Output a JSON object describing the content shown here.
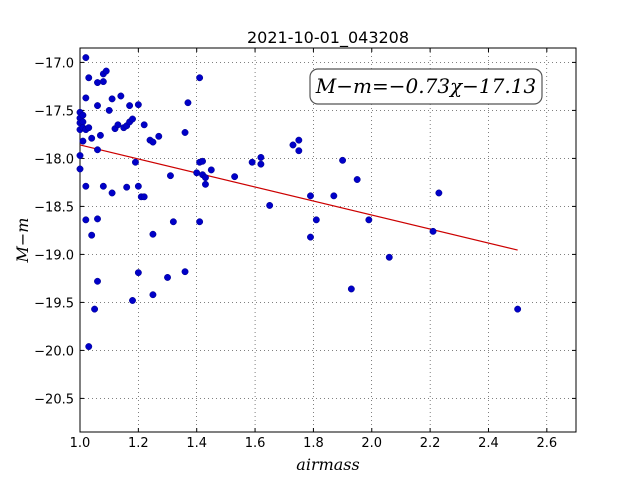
{
  "chart_data": {
    "type": "scatter",
    "title": "2021-10-01_043208",
    "xlabel": "airmass",
    "ylabel": "M−m",
    "xlim": [
      1.0,
      2.7
    ],
    "ylim": [
      -20.85,
      -16.85
    ],
    "y_inverted": true,
    "grid": true,
    "x_ticks": [
      "1.0",
      "1.2",
      "1.4",
      "1.6",
      "1.8",
      "2.0",
      "2.2",
      "2.4",
      "2.6"
    ],
    "x_tick_values": [
      1.0,
      1.2,
      1.4,
      1.6,
      1.8,
      2.0,
      2.2,
      2.4,
      2.6
    ],
    "y_ticks": [
      "−17.0",
      "−17.5",
      "−18.0",
      "−18.5",
      "−19.0",
      "−19.5",
      "−20.0",
      "−20.5"
    ],
    "y_tick_values": [
      -17.0,
      -17.5,
      -18.0,
      -18.5,
      -19.0,
      -19.5,
      -20.0,
      -20.5
    ],
    "annotation": "M−m=−0.73χ−17.13",
    "fit_line": {
      "slope": -0.73,
      "intercept": -17.13,
      "x_range": [
        1.0,
        2.5
      ],
      "color": "#cc0000"
    },
    "point_color": "#0000c8",
    "points": [
      [
        1.0,
        -17.52
      ],
      [
        1.0,
        -17.58
      ],
      [
        1.0,
        -17.63
      ],
      [
        1.0,
        -17.7
      ],
      [
        1.0,
        -17.97
      ],
      [
        1.0,
        -18.11
      ],
      [
        1.01,
        -17.62
      ],
      [
        1.01,
        -17.68
      ],
      [
        1.01,
        -17.82
      ],
      [
        1.01,
        -17.55
      ],
      [
        1.02,
        -17.7
      ],
      [
        1.02,
        -16.95
      ],
      [
        1.02,
        -17.37
      ],
      [
        1.02,
        -18.29
      ],
      [
        1.02,
        -18.64
      ],
      [
        1.03,
        -17.16
      ],
      [
        1.03,
        -17.68
      ],
      [
        1.03,
        -19.96
      ],
      [
        1.04,
        -17.79
      ],
      [
        1.04,
        -18.8
      ],
      [
        1.05,
        -19.57
      ],
      [
        1.06,
        -17.21
      ],
      [
        1.06,
        -17.45
      ],
      [
        1.06,
        -17.91
      ],
      [
        1.06,
        -19.28
      ],
      [
        1.06,
        -18.63
      ],
      [
        1.07,
        -17.76
      ],
      [
        1.08,
        -17.12
      ],
      [
        1.08,
        -17.2
      ],
      [
        1.08,
        -18.29
      ],
      [
        1.09,
        -17.09
      ],
      [
        1.1,
        -17.5
      ],
      [
        1.11,
        -18.36
      ],
      [
        1.11,
        -17.38
      ],
      [
        1.12,
        -17.69
      ],
      [
        1.13,
        -17.65
      ],
      [
        1.14,
        -17.35
      ],
      [
        1.15,
        -17.68
      ],
      [
        1.16,
        -17.66
      ],
      [
        1.16,
        -18.3
      ],
      [
        1.17,
        -17.45
      ],
      [
        1.17,
        -17.62
      ],
      [
        1.18,
        -17.59
      ],
      [
        1.18,
        -19.48
      ],
      [
        1.19,
        -18.04
      ],
      [
        1.2,
        -17.44
      ],
      [
        1.2,
        -18.29
      ],
      [
        1.2,
        -19.19
      ],
      [
        1.21,
        -18.4
      ],
      [
        1.22,
        -18.4
      ],
      [
        1.22,
        -17.65
      ],
      [
        1.24,
        -17.81
      ],
      [
        1.25,
        -17.83
      ],
      [
        1.25,
        -19.42
      ],
      [
        1.25,
        -18.79
      ],
      [
        1.27,
        -17.77
      ],
      [
        1.3,
        -19.24
      ],
      [
        1.31,
        -18.18
      ],
      [
        1.32,
        -18.66
      ],
      [
        1.36,
        -19.18
      ],
      [
        1.36,
        -17.73
      ],
      [
        1.37,
        -17.42
      ],
      [
        1.4,
        -18.15
      ],
      [
        1.41,
        -17.16
      ],
      [
        1.41,
        -18.04
      ],
      [
        1.41,
        -18.66
      ],
      [
        1.42,
        -18.03
      ],
      [
        1.42,
        -18.17
      ],
      [
        1.43,
        -18.2
      ],
      [
        1.43,
        -18.27
      ],
      [
        1.45,
        -18.12
      ],
      [
        1.53,
        -18.19
      ],
      [
        1.59,
        -18.04
      ],
      [
        1.62,
        -17.99
      ],
      [
        1.62,
        -18.06
      ],
      [
        1.65,
        -18.49
      ],
      [
        1.73,
        -17.86
      ],
      [
        1.75,
        -17.81
      ],
      [
        1.75,
        -17.92
      ],
      [
        1.79,
        -18.39
      ],
      [
        1.79,
        -18.82
      ],
      [
        1.81,
        -18.64
      ],
      [
        1.87,
        -18.39
      ],
      [
        1.9,
        -18.02
      ],
      [
        1.93,
        -19.36
      ],
      [
        1.95,
        -18.22
      ],
      [
        1.99,
        -18.64
      ],
      [
        2.06,
        -19.03
      ],
      [
        2.21,
        -18.76
      ],
      [
        2.23,
        -18.36
      ],
      [
        2.5,
        -19.57
      ]
    ]
  }
}
